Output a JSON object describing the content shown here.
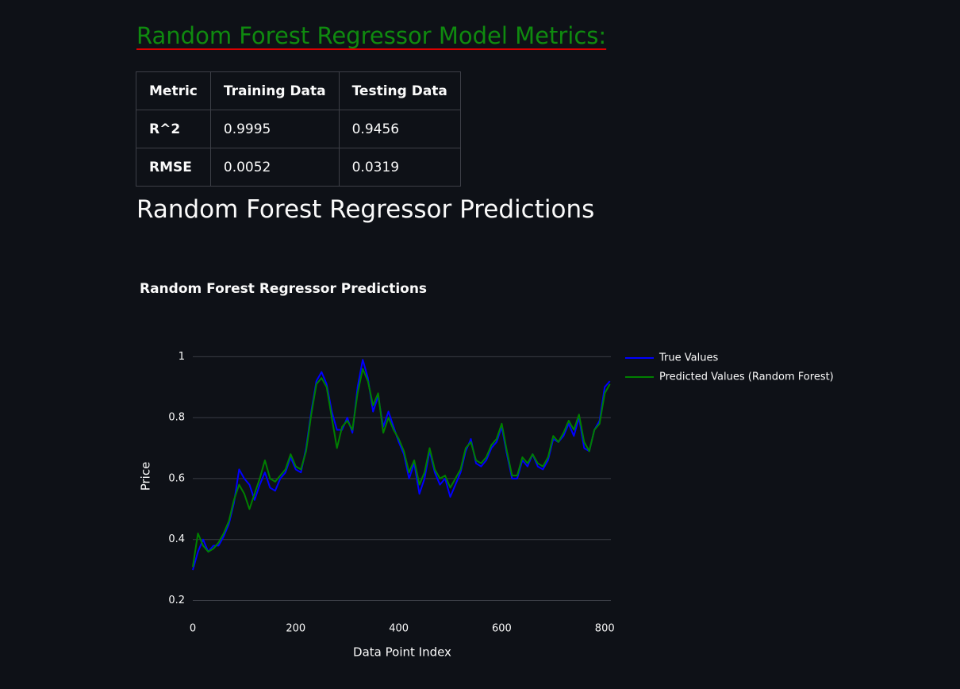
{
  "header": {
    "title": "Random Forest Regressor Model Metrics:"
  },
  "table": {
    "columns": [
      "Metric",
      "Training Data",
      "Testing Data"
    ],
    "rows": [
      [
        "R^2",
        "0.9995",
        "0.9456"
      ],
      [
        "RMSE",
        "0.0052",
        "0.0319"
      ]
    ]
  },
  "subheader": "Random Forest Regressor Predictions",
  "chart_data": {
    "type": "line",
    "title": "Random Forest Regressor Predictions",
    "x_label": "Data Point Index",
    "y_label": "Price",
    "x": [
      0,
      10,
      20,
      30,
      40,
      50,
      60,
      70,
      80,
      90,
      100,
      110,
      120,
      130,
      140,
      150,
      160,
      170,
      180,
      190,
      200,
      210,
      220,
      230,
      240,
      250,
      260,
      270,
      280,
      290,
      300,
      310,
      320,
      330,
      340,
      350,
      360,
      370,
      380,
      390,
      400,
      410,
      420,
      430,
      440,
      450,
      460,
      470,
      480,
      490,
      500,
      510,
      520,
      530,
      540,
      550,
      560,
      570,
      580,
      590,
      600,
      610,
      620,
      630,
      640,
      650,
      660,
      670,
      680,
      690,
      700,
      710,
      720,
      730,
      740,
      750,
      760,
      770,
      780,
      790,
      800,
      810
    ],
    "series": [
      {
        "name": "True Values",
        "color": "#0000ff",
        "values": [
          0.3,
          0.36,
          0.4,
          0.36,
          0.38,
          0.38,
          0.41,
          0.45,
          0.52,
          0.63,
          0.6,
          0.58,
          0.53,
          0.58,
          0.62,
          0.57,
          0.56,
          0.6,
          0.62,
          0.67,
          0.63,
          0.62,
          0.7,
          0.82,
          0.92,
          0.95,
          0.91,
          0.82,
          0.76,
          0.76,
          0.8,
          0.75,
          0.9,
          0.99,
          0.93,
          0.82,
          0.87,
          0.77,
          0.82,
          0.77,
          0.72,
          0.68,
          0.6,
          0.65,
          0.55,
          0.6,
          0.69,
          0.62,
          0.58,
          0.6,
          0.54,
          0.58,
          0.62,
          0.69,
          0.73,
          0.65,
          0.64,
          0.66,
          0.7,
          0.72,
          0.77,
          0.68,
          0.6,
          0.6,
          0.66,
          0.64,
          0.68,
          0.64,
          0.63,
          0.66,
          0.73,
          0.72,
          0.74,
          0.78,
          0.74,
          0.8,
          0.7,
          0.69,
          0.76,
          0.79,
          0.9,
          0.92
        ]
      },
      {
        "name": "Predicted Values (Random Forest)",
        "color": "#008000",
        "values": [
          0.31,
          0.42,
          0.38,
          0.36,
          0.37,
          0.39,
          0.42,
          0.46,
          0.53,
          0.58,
          0.55,
          0.5,
          0.55,
          0.6,
          0.66,
          0.6,
          0.59,
          0.61,
          0.63,
          0.68,
          0.64,
          0.63,
          0.69,
          0.81,
          0.91,
          0.93,
          0.9,
          0.8,
          0.7,
          0.77,
          0.79,
          0.76,
          0.88,
          0.96,
          0.92,
          0.84,
          0.88,
          0.75,
          0.8,
          0.76,
          0.73,
          0.69,
          0.62,
          0.66,
          0.58,
          0.62,
          0.7,
          0.63,
          0.6,
          0.61,
          0.57,
          0.6,
          0.63,
          0.7,
          0.72,
          0.66,
          0.65,
          0.67,
          0.71,
          0.73,
          0.78,
          0.69,
          0.61,
          0.61,
          0.67,
          0.65,
          0.68,
          0.65,
          0.64,
          0.67,
          0.74,
          0.72,
          0.75,
          0.79,
          0.76,
          0.81,
          0.72,
          0.69,
          0.76,
          0.78,
          0.88,
          0.91
        ]
      }
    ],
    "xlim": [
      0,
      812
    ],
    "ylim": [
      0.17,
      1.04
    ],
    "xticks": [
      0,
      200,
      400,
      600,
      800
    ],
    "yticks": [
      0.2,
      0.4,
      0.6,
      0.8,
      1
    ],
    "grid": true
  }
}
